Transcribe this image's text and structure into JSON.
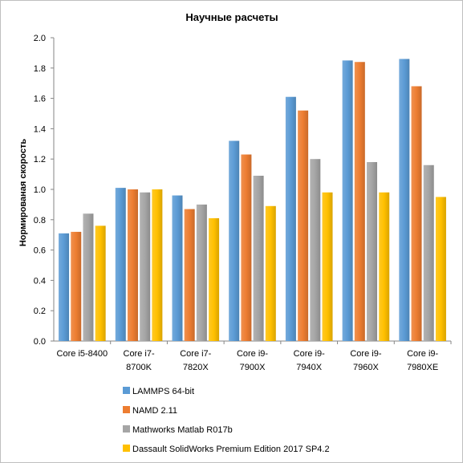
{
  "chart_data": {
    "type": "bar",
    "title": "Научные расчеты",
    "ylabel": "Нормированая скорость",
    "xlabel": "",
    "ylim": [
      0,
      2.0
    ],
    "yticks": [
      "0.0",
      "0.2",
      "0.4",
      "0.6",
      "0.8",
      "1.0",
      "1.2",
      "1.4",
      "1.6",
      "1.8",
      "2.0"
    ],
    "categories": [
      [
        "Core i5-8400"
      ],
      [
        "Core i7-",
        "8700K"
      ],
      [
        "Core i7-",
        "7820X"
      ],
      [
        "Core i9-",
        "7900X"
      ],
      [
        "Core i9-",
        "7940X"
      ],
      [
        "Core i9-",
        "7960X"
      ],
      [
        "Core i9-",
        "7980XE"
      ]
    ],
    "series": [
      {
        "name": "LAMMPS 64-bit",
        "color": "#5b9bd5",
        "values": [
          0.71,
          1.01,
          0.96,
          1.32,
          1.61,
          1.85,
          1.86
        ]
      },
      {
        "name": "NAMD 2.11",
        "color": "#ed7d31",
        "values": [
          0.72,
          1.0,
          0.87,
          1.23,
          1.52,
          1.84,
          1.68
        ]
      },
      {
        "name": "Mathworks Matlab R017b",
        "color": "#a5a5a5",
        "values": [
          0.84,
          0.98,
          0.9,
          1.09,
          1.2,
          1.18,
          1.16
        ]
      },
      {
        "name": "Dassault SolidWorks Premium Edition 2017 SP4.2",
        "color": "#ffc000",
        "values": [
          0.76,
          1.0,
          0.81,
          0.89,
          0.98,
          0.98,
          0.95
        ]
      }
    ],
    "grid": false,
    "legend": "bottom"
  }
}
